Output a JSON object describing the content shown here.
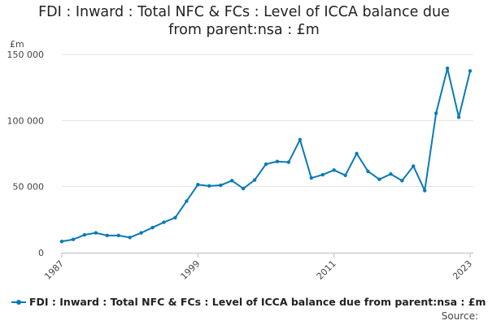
{
  "chart_data": {
    "type": "line",
    "title_line1": "FDI : Inward : Total NFC & FCs : Level of ICCA balance due",
    "title_line2": "from parent:nsa : £m",
    "ylabel": "£m",
    "ylim": [
      0,
      150000
    ],
    "yticks": [
      {
        "value": 0,
        "label": "0"
      },
      {
        "value": 50000,
        "label": "50 000"
      },
      {
        "value": 100000,
        "label": "100 000"
      },
      {
        "value": 150000,
        "label": "150 000"
      }
    ],
    "xlim": [
      1987,
      2023
    ],
    "xticks": [
      {
        "value": 1987,
        "label": "1987"
      },
      {
        "value": 1999,
        "label": "1999"
      },
      {
        "value": 2011,
        "label": "2011"
      },
      {
        "value": 2023,
        "label": "2023"
      }
    ],
    "grid": true,
    "color": "#0a7ab8",
    "series": [
      {
        "name": "FDI : Inward : Total NFC & FCs : Level of ICCA balance due from parent:nsa : £m",
        "x": [
          1987,
          1988,
          1989,
          1990,
          1991,
          1992,
          1993,
          1994,
          1995,
          1996,
          1997,
          1998,
          1999,
          2000,
          2001,
          2002,
          2003,
          2004,
          2005,
          2006,
          2007,
          2008,
          2009,
          2010,
          2011,
          2012,
          2013,
          2014,
          2015,
          2016,
          2017,
          2018,
          2019,
          2020,
          2021,
          2022,
          2023
        ],
        "y": [
          8500,
          10000,
          13500,
          15000,
          13000,
          13000,
          11500,
          15000,
          19000,
          23000,
          26500,
          39000,
          51500,
          50500,
          51000,
          54500,
          48500,
          55000,
          67000,
          69000,
          68500,
          85500,
          56500,
          59000,
          62500,
          58500,
          75000,
          61500,
          55500,
          59500,
          54500,
          65500,
          47000,
          105500,
          139500,
          102500,
          137500
        ]
      }
    ],
    "legend_label": "FDI : Inward : Total NFC & FCs : Level of ICCA balance due from parent:nsa : £m",
    "legend_position": "bottom-left",
    "source_label": "Source:"
  }
}
